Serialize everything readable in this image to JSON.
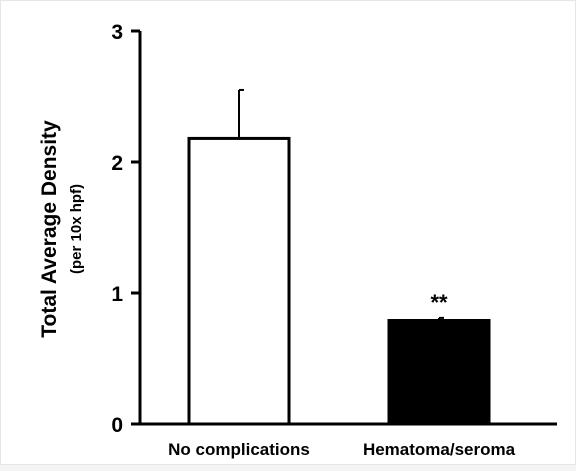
{
  "chart_data": {
    "type": "bar",
    "categories": [
      "No complications",
      "Hematoma/seroma"
    ],
    "values": [
      2.18,
      0.79
    ],
    "error_upper": [
      2.55,
      0.81
    ],
    "bar_fill": [
      "#ffffff",
      "#000000"
    ],
    "annotations": [
      "",
      "**"
    ],
    "ylabel": "Total Average Density",
    "ylabel_sub": "(per 10x hpf)",
    "yticks": [
      0,
      1,
      2,
      3
    ],
    "ylim": [
      0,
      3
    ],
    "grid": false
  }
}
